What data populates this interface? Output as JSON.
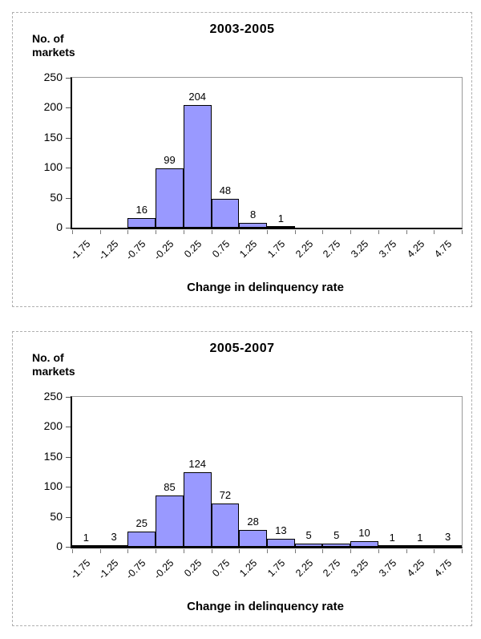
{
  "page": {
    "background": "#ffffff"
  },
  "chart_data": [
    {
      "type": "bar",
      "title": "2003-2005",
      "ylabel_line1": "No. of",
      "ylabel_line2": "markets",
      "xlabel": "Change in delinquency rate",
      "categories": [
        "-1.75",
        "-1.25",
        "-0.75",
        "-0.25",
        "0.25",
        "0.75",
        "1.25",
        "1.75",
        "2.25",
        "2.75",
        "3.25",
        "3.75",
        "4.25",
        "4.75"
      ],
      "values": [
        0,
        0,
        16,
        99,
        204,
        48,
        8,
        1,
        0,
        0,
        0,
        0,
        0,
        0
      ],
      "ylim": [
        0,
        250
      ],
      "y_ticks": [
        0,
        50,
        100,
        150,
        200,
        250
      ],
      "grid": false,
      "legend": "none",
      "bar_color": "#9999ff",
      "bar_border_color": "#000000"
    },
    {
      "type": "bar",
      "title": "2005-2007",
      "ylabel_line1": "No. of",
      "ylabel_line2": "markets",
      "xlabel": "Change in delinquency rate",
      "categories": [
        "-1.75",
        "-1.25",
        "-0.75",
        "-0.25",
        "0.25",
        "0.75",
        "1.25",
        "1.75",
        "2.25",
        "2.75",
        "3.25",
        "3.75",
        "4.25",
        "4.75"
      ],
      "values": [
        1,
        3,
        25,
        85,
        124,
        72,
        28,
        13,
        5,
        5,
        10,
        1,
        1,
        3
      ],
      "ylim": [
        0,
        250
      ],
      "y_ticks": [
        0,
        50,
        100,
        150,
        200,
        250
      ],
      "grid": false,
      "legend": "none",
      "bar_color": "#9999ff",
      "bar_border_color": "#000000"
    }
  ]
}
